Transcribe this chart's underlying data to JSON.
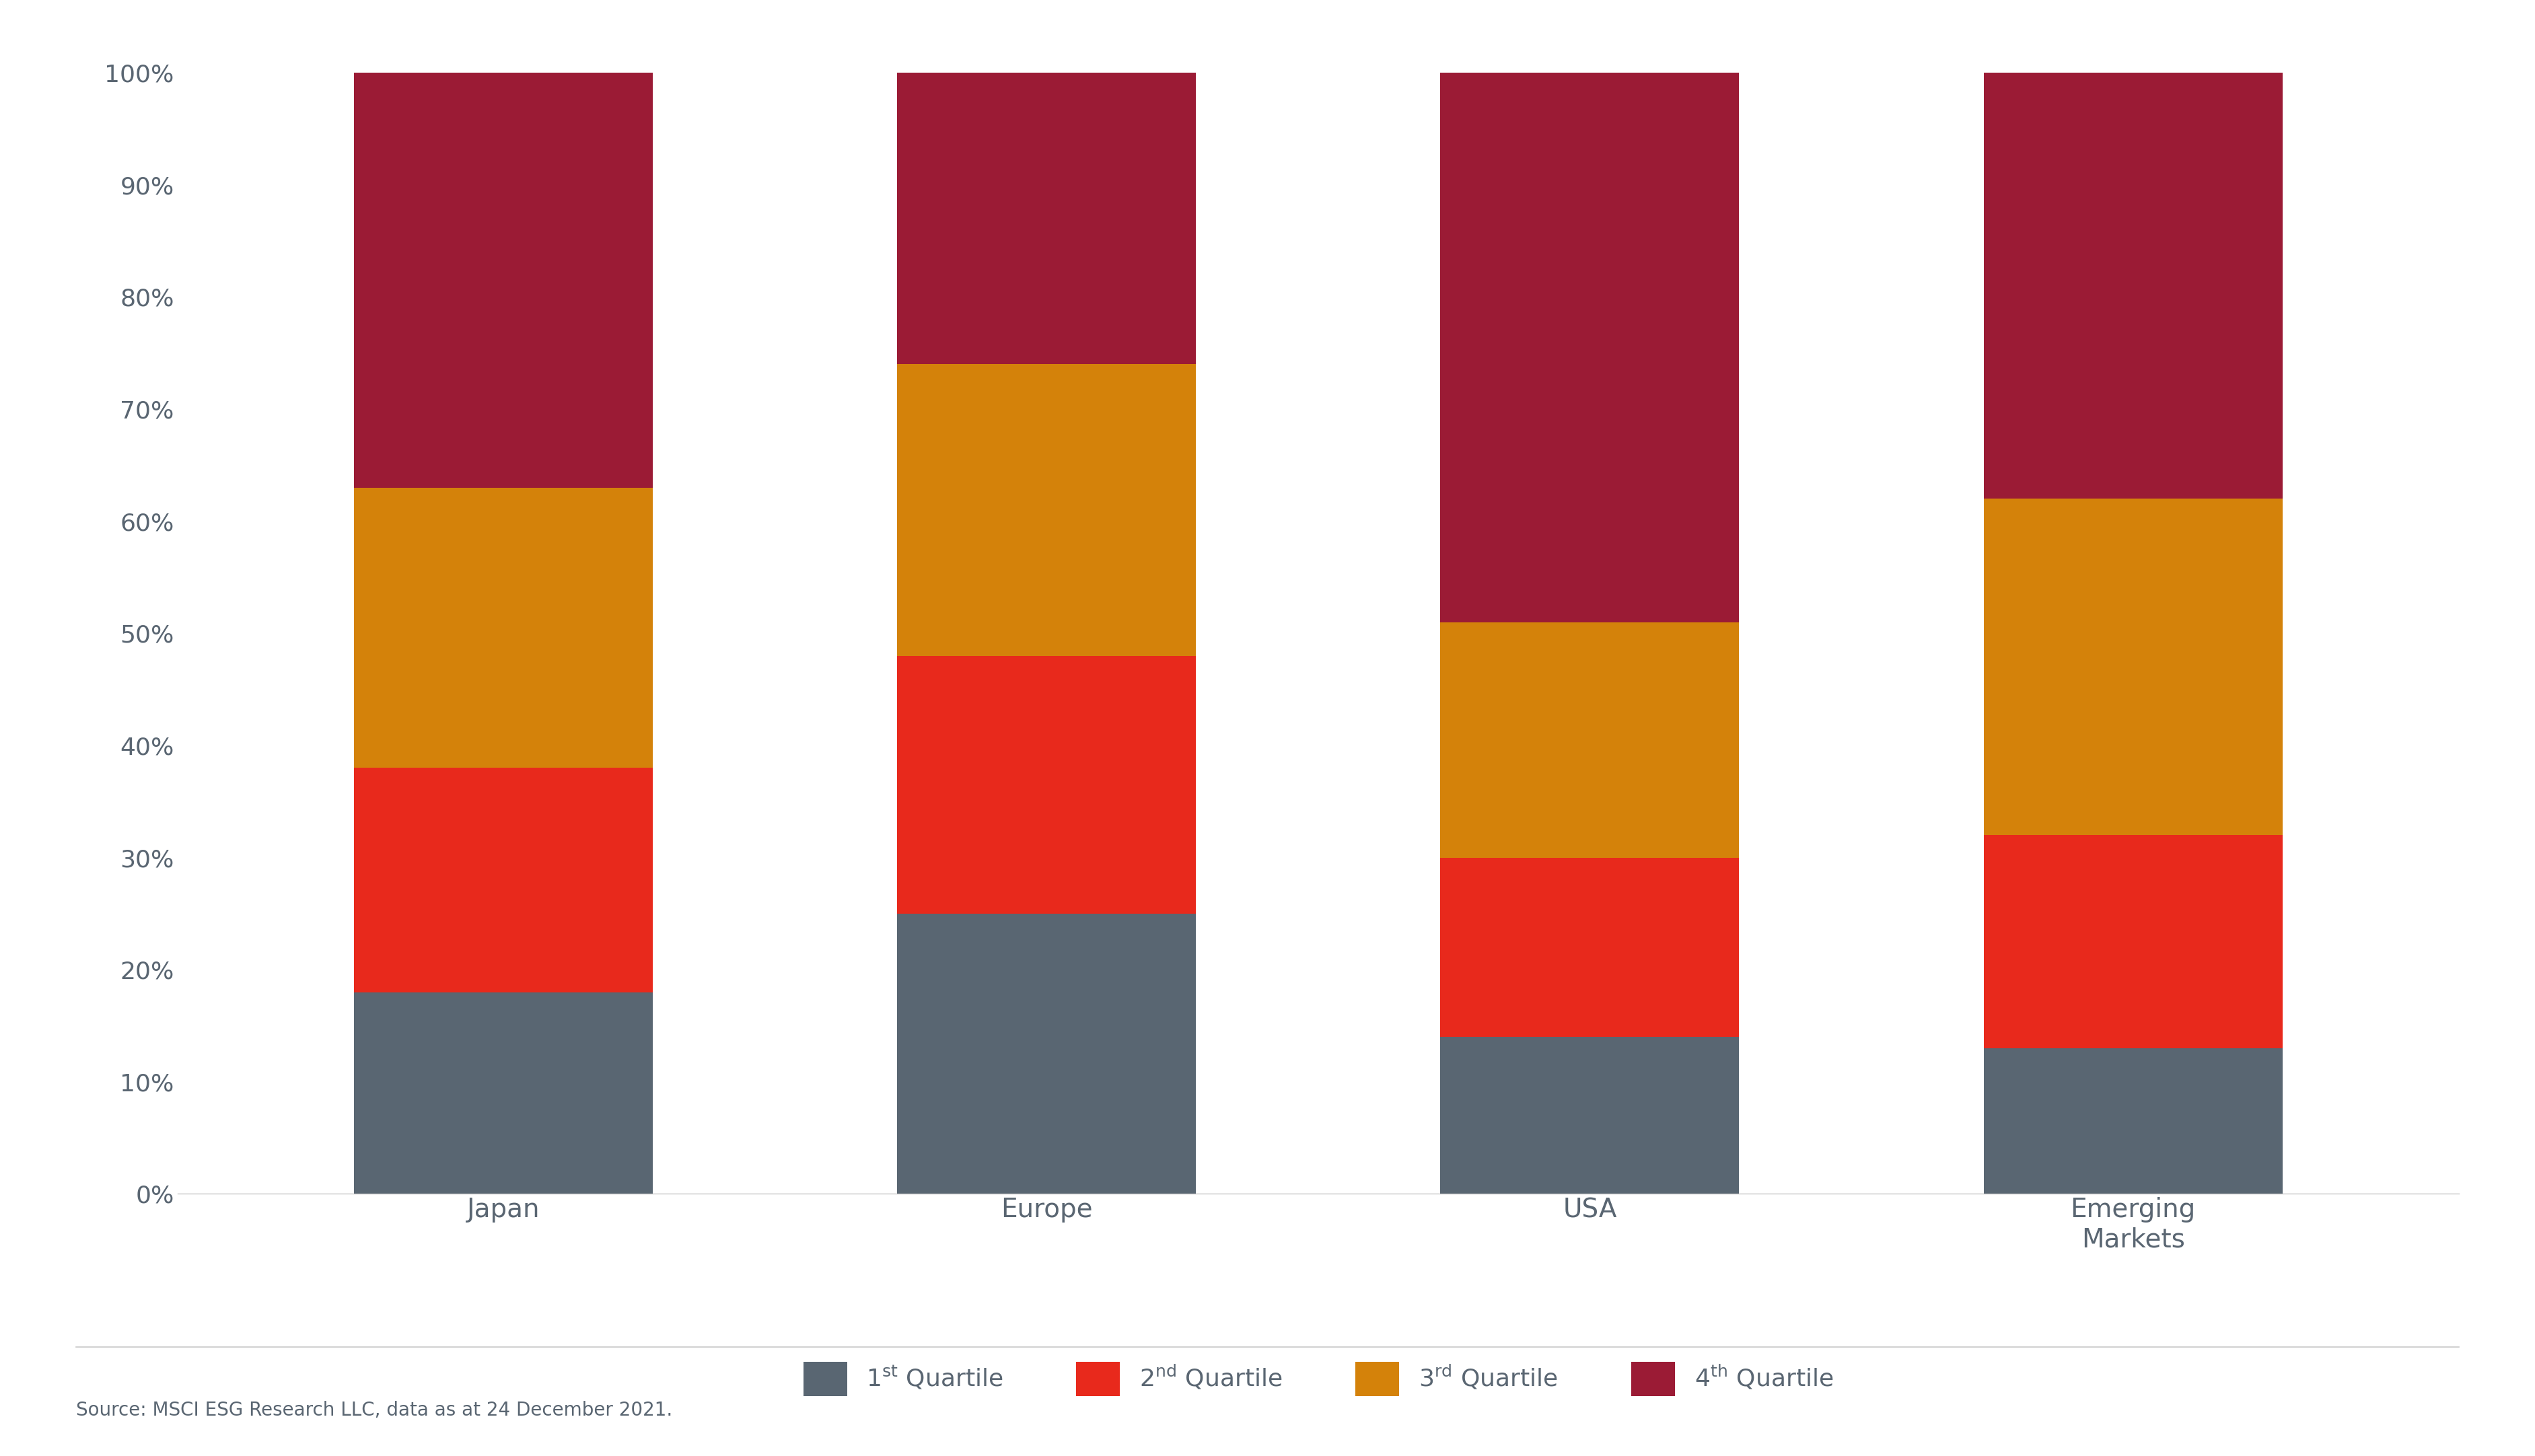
{
  "categories": [
    "Japan",
    "Europe",
    "USA",
    "Emerging\nMarkets"
  ],
  "values": [
    [
      18,
      20,
      25,
      37
    ],
    [
      25,
      23,
      26,
      26
    ],
    [
      14,
      16,
      21,
      49
    ],
    [
      13,
      19,
      30,
      38
    ]
  ],
  "colors": [
    "#596672",
    "#e8291c",
    "#d4820a",
    "#9b1b35"
  ],
  "bar_width": 0.55,
  "ylim": [
    0,
    100
  ],
  "yticks": [
    0,
    10,
    20,
    30,
    40,
    50,
    60,
    70,
    80,
    90,
    100
  ],
  "ytick_labels": [
    "0%",
    "10%",
    "20%",
    "30%",
    "40%",
    "50%",
    "60%",
    "70%",
    "80%",
    "90%",
    "100%"
  ],
  "source_text": "Source: MSCI ESG Research LLC, data as at 24 December 2021.",
  "background_color": "#ffffff",
  "text_color": "#5a6672",
  "axis_color": "#c8c8c8",
  "legend_fontsize": 26,
  "tick_fontsize": 26,
  "source_fontsize": 20,
  "xtick_fontsize": 28
}
